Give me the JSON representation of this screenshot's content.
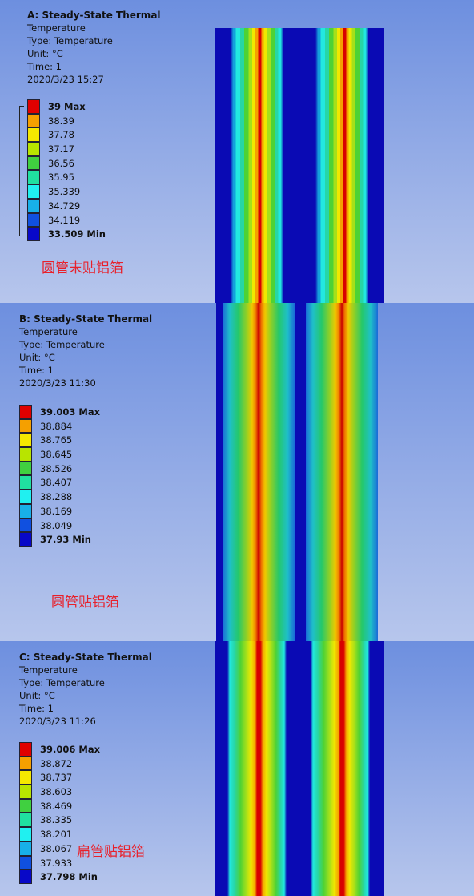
{
  "panels": [
    {
      "title": "A: Steady-State Thermal",
      "quantity": "Temperature",
      "type_label": "Type: Temperature",
      "unit_label": "Unit: °C",
      "time_label": "Time: 1",
      "datetime": "2020/3/23 15:27",
      "legend": [
        "39 Max",
        "38.39",
        "37.78",
        "37.17",
        "36.56",
        "35.95",
        "35.339",
        "34.729",
        "34.119",
        "33.509 Min"
      ],
      "caption": "圆管末贴铝箔"
    },
    {
      "title": "B: Steady-State Thermal",
      "quantity": "Temperature",
      "type_label": "Type: Temperature",
      "unit_label": "Unit: °C",
      "time_label": "Time: 1",
      "datetime": "2020/3/23 11:30",
      "legend": [
        "39.003 Max",
        "38.884",
        "38.765",
        "38.645",
        "38.526",
        "38.407",
        "38.288",
        "38.169",
        "38.049",
        "37.93 Min"
      ],
      "caption": "圆管贴铝箔"
    },
    {
      "title": "C: Steady-State Thermal",
      "quantity": "Temperature",
      "type_label": "Type: Temperature",
      "unit_label": "Unit: °C",
      "time_label": "Time: 1",
      "datetime": "2020/3/23 11:26",
      "legend": [
        "39.006 Max",
        "38.872",
        "38.737",
        "38.603",
        "38.469",
        "38.335",
        "38.201",
        "38.067",
        "37.933",
        "37.798 Min"
      ],
      "caption": "扁管贴铝箔"
    }
  ],
  "legend_colors": [
    "#e00000",
    "#f5a000",
    "#f5e800",
    "#b8e400",
    "#40d040",
    "#20e0a0",
    "#20f0f0",
    "#18b0e8",
    "#1050e0",
    "#0808c8"
  ]
}
